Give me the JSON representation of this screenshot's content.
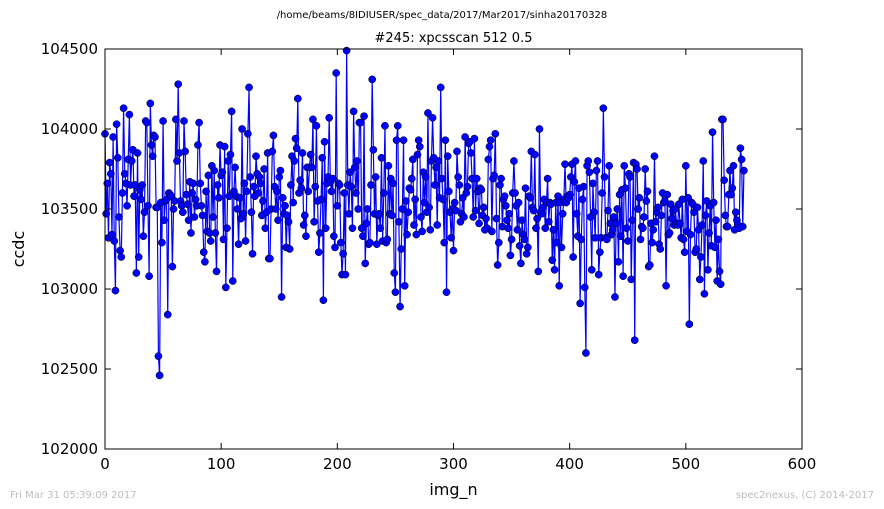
{
  "figure": {
    "suptitle": "/home/beams/8IDIUSER/spec_data/2017/Mar2017/sinha20170328",
    "footer_left": "Fri Mar 31 05:39:09 2017",
    "footer_right": "spec2nexus, (C) 2014-2017"
  },
  "chart_data": {
    "type": "line",
    "title": "#245: xpcsscan 512 0.5",
    "xlabel": "img_n",
    "ylabel": "ccdc",
    "xlim": [
      0,
      600
    ],
    "ylim": [
      102000,
      104500
    ],
    "xticks": [
      "0",
      "100",
      "200",
      "300",
      "400",
      "500",
      "600"
    ],
    "yticks": [
      "102000",
      "102500",
      "103000",
      "103500",
      "104000",
      "104500"
    ],
    "grid": false,
    "marker": "circle",
    "line_color": "#0000ff",
    "marker_color": "#0000ff",
    "series": [
      {
        "values": [
          103970,
          103470,
          103660,
          103320,
          103790,
          103720,
          103340,
          103950,
          103300,
          102990,
          104030,
          103820,
          103450,
          103240,
          103200,
          103600,
          104130,
          103720,
          103660,
          103520,
          103810,
          104090,
          103650,
          103800,
          103870,
          103580,
          103650,
          103100,
          103850,
          103200,
          103620,
          103560,
          103650,
          103330,
          103480,
          104050,
          104040,
          103520,
          103080,
          104160,
          103900,
          103830,
          103960,
          103950,
          103510,
          103510,
          102580,
          102460,
          103540,
          103290,
          104050,
          103430,
          103550,
          103560,
          102840,
          103600,
          103590,
          103580,
          103140,
          103500,
          103550,
          104060,
          103800,
          104280,
          103850,
          103550,
          103520,
          103480,
          104050,
          103860,
          103590,
          103530,
          103430,
          103670,
          103350,
          103600,
          103660,
          103450,
          103560,
          103520,
          103900,
          104040,
          103660,
          103520,
          103460,
          103230,
          103170,
          103610,
          103360,
          103710,
          103350,
          103300,
          103770,
          103450,
          103740,
          103350,
          103110,
          103650,
          103570,
          103900,
          103710,
          103730,
          103310,
          103890,
          103010,
          103380,
          103800,
          103580,
          103840,
          104110,
          103050,
          103610,
          103760,
          103580,
          103500,
          103280,
          103570,
          103440,
          104000,
          103470,
          103660,
          103300,
          103610,
          103970,
          104260,
          103700,
          103480,
          103220,
          103640,
          103580,
          103830,
          103720,
          103600,
          103700,
          103660,
          103460,
          103550,
          103750,
          103380,
          103480,
          103850,
          103190,
          103190,
          103500,
          103860,
          103960,
          103640,
          103500,
          103610,
          103430,
          103700,
          103740,
          102950,
          103570,
          103470,
          103520,
          103260,
          103460,
          103420,
          103250,
          103650,
          103830,
          103540,
          103800,
          103940,
          103880,
          104190,
          103600,
          103680,
          103630,
          103850,
          103400,
          103460,
          103330,
          103760,
          103610,
          103760,
          103840,
          103760,
          104060,
          103420,
          103640,
          104020,
          103550,
          103230,
          103350,
          103560,
          103820,
          102930,
          103920,
          103380,
          103660,
          103700,
          104070,
          103670,
          103610,
          103690,
          103330,
          103260,
          104350,
          103520,
          103660,
          103650,
          103290,
          103090,
          103220,
          103600,
          103090,
          104490,
          103650,
          103470,
          103730,
          103640,
          103380,
          104110,
          103760,
          103600,
          103800,
          103500,
          104040,
          104040,
          103380,
          103330,
          104080,
          103160,
          103410,
          103500,
          103280,
          103290,
          103650,
          104310,
          103870,
          103470,
          103700,
          103280,
          103460,
          103470,
          103380,
          103820,
          103300,
          103600,
          104020,
          103290,
          103310,
          103770,
          103470,
          103690,
          103460,
          103660,
          103100,
          102980,
          103930,
          104020,
          103420,
          102890,
          103250,
          103500,
          103930,
          103020,
          103550,
          103340,
          103480,
          103630,
          103620,
          103690,
          103810,
          103400,
          103560,
          103340,
          103840,
          103930,
          103890,
          103450,
          103360,
          103730,
          103540,
          103700,
          103480,
          104100,
          103510,
          103370,
          103800,
          104070,
          103820,
          103650,
          103760,
          103400,
          103800,
          103570,
          104260,
          103690,
          103560,
          103290,
          103930,
          102980,
          103830,
          103610,
          103480,
          103320,
          103500,
          103240,
          103540,
          103490,
          103860,
          103700,
          103650,
          103420,
          103470,
          103570,
          103450,
          103950,
          103600,
          103640,
          103910,
          103920,
          103850,
          103690,
          103450,
          103940,
          103490,
          103690,
          103610,
          103410,
          103630,
          103620,
          103460,
          103510,
          103370,
          103440,
          103380,
          103810,
          103890,
          103930,
          103360,
          103690,
          103710,
          103970,
          103440,
          103150,
          103290,
          103650,
          103690,
          103390,
          103560,
          103580,
          103520,
          103430,
          103380,
          103470,
          103210,
          103310,
          103600,
          103800,
          103600,
          103520,
          103370,
          103540,
          103270,
          103160,
          103430,
          103340,
          103310,
          103630,
          103220,
          103260,
          103580,
          103570,
          103860,
          103510,
          103490,
          103840,
          103380,
          103440,
          103110,
          104000,
          103480,
          103470,
          103510,
          103560,
          103380,
          103540,
          103690,
          103420,
          103540,
          103530,
          103180,
          103370,
          103120,
          103540,
          103290,
          103580,
          103020,
          103540,
          103260,
          103470,
          103560,
          103780,
          103540,
          103580,
          103570,
          103590,
          103700,
          103780,
          103200,
          103670,
          103800,
          103470,
          103330,
          103630,
          102910,
          103310,
          103560,
          103640,
          103010,
          102600,
          103770,
          103800,
          103730,
          103450,
          103120,
          103660,
          103480,
          103320,
          103740,
          103800,
          103090,
          103230,
          103320,
          103600,
          104130,
          103700,
          103320,
          103310,
          103490,
          103770,
          103410,
          103340,
          103370,
          103450,
          102950,
          103410,
          103500,
          103170,
          103590,
          103330,
          103620,
          103080,
          103770,
          103630,
          103380,
          103300,
          103720,
          103700,
          103060,
          103430,
          103790,
          102680,
          103780,
          103750,
          103500,
          103570,
          103310,
          103390,
          103380,
          103450,
          103750,
          103550,
          103610,
          103140,
          103150,
          103410,
          103290,
          103370,
          103830,
          103420,
          103480,
          103510,
          103280,
          103250,
          103460,
          103600,
          103540,
          103550,
          103020,
          103590,
          103340,
          103350,
          103530,
          103440,
          103490,
          103400,
          103500,
          103410,
          103400,
          103530,
          103410,
          103320,
          103560,
          103310,
          103230,
          103770,
          103360,
          103570,
          102780,
          103340,
          103540,
          103530,
          103480,
          103230,
          103250,
          103510,
          103370,
          103060,
          103200,
          103400,
          103800,
          102970,
          103460,
          103550,
          103120,
          103350,
          103520,
          103270,
          103980,
          103540,
          103260,
          103430,
          103050,
          103310,
          103110,
          103030,
          104060,
          104060,
          103680,
          103460,
          103390,
          103390,
          103590,
          103740,
          103590,
          103630,
          103770,
          103370,
          103480,
          103430,
          103400,
          103380,
          103880,
          103810,
          103390,
          103740
        ]
      }
    ]
  }
}
